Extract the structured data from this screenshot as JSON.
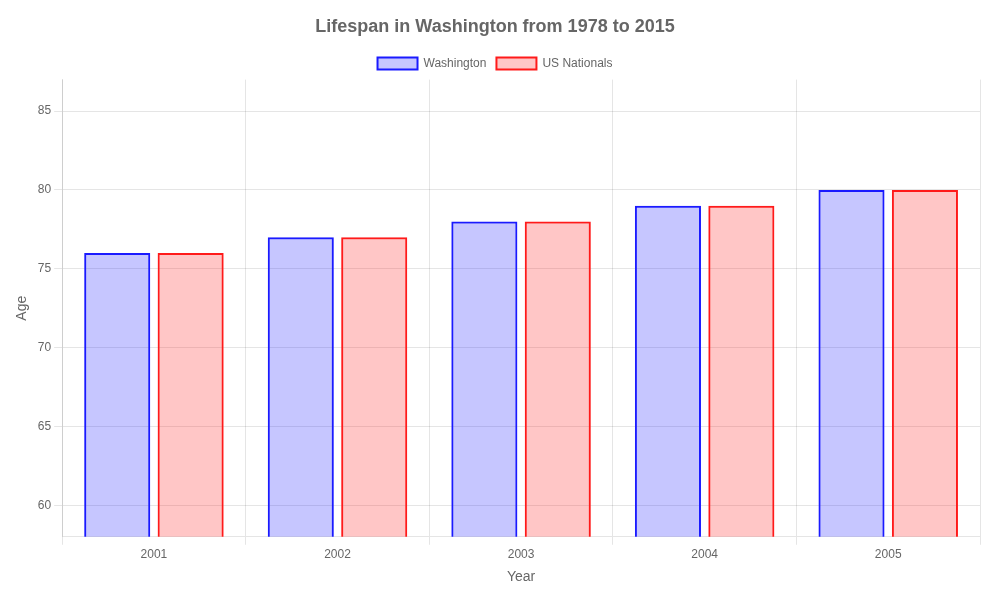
{
  "chart_data": {
    "type": "bar",
    "title": "Lifespan in Washington from 1978 to 2015",
    "xlabel": "Year",
    "ylabel": "Age",
    "categories": [
      "2001",
      "2002",
      "2003",
      "2004",
      "2005"
    ],
    "series": [
      {
        "name": "Washington",
        "color": "#1a1aff",
        "values": [
          76,
          77,
          78,
          79,
          80
        ]
      },
      {
        "name": "US Nationals",
        "color": "#ff1a1a",
        "values": [
          76,
          77,
          78,
          79,
          80
        ]
      }
    ],
    "ylim": [
      58,
      87
    ],
    "yticks": [
      60,
      65,
      70,
      75,
      80,
      85
    ],
    "grid": true,
    "legend": "top"
  }
}
